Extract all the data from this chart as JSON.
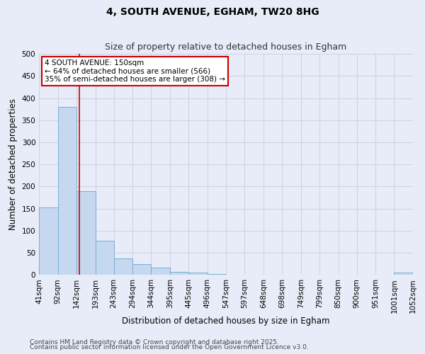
{
  "title1": "4, SOUTH AVENUE, EGHAM, TW20 8HG",
  "title2": "Size of property relative to detached houses in Egham",
  "xlabel": "Distribution of detached houses by size in Egham",
  "ylabel": "Number of detached properties",
  "bin_edges": [
    41,
    92,
    142,
    193,
    243,
    294,
    344,
    395,
    445,
    496,
    547,
    597,
    648,
    698,
    749,
    799,
    850,
    900,
    951,
    1001,
    1052
  ],
  "bar_heights": [
    152,
    380,
    190,
    78,
    38,
    25,
    17,
    7,
    5,
    2,
    1,
    1,
    0,
    0,
    0,
    0,
    0,
    0,
    0,
    5
  ],
  "bar_color": "#c5d8f0",
  "bar_edgecolor": "#7aafd4",
  "vline_x": 150,
  "vline_color": "#cc0000",
  "annotation_text": "4 SOUTH AVENUE: 150sqm\n← 64% of detached houses are smaller (566)\n35% of semi-detached houses are larger (308) →",
  "annotation_box_color": "#cc0000",
  "ylim": [
    0,
    500
  ],
  "yticks": [
    0,
    50,
    100,
    150,
    200,
    250,
    300,
    350,
    400,
    450,
    500
  ],
  "bg_color": "#e8ecf8",
  "grid_color": "#c8cce0",
  "title_fontsize": 10,
  "subtitle_fontsize": 9,
  "tick_fontsize": 7.5,
  "label_fontsize": 8.5,
  "annot_fontsize": 7.5,
  "footer_fontsize": 6.5,
  "footer1": "Contains HM Land Registry data © Crown copyright and database right 2025.",
  "footer2": "Contains public sector information licensed under the Open Government Licence v3.0."
}
